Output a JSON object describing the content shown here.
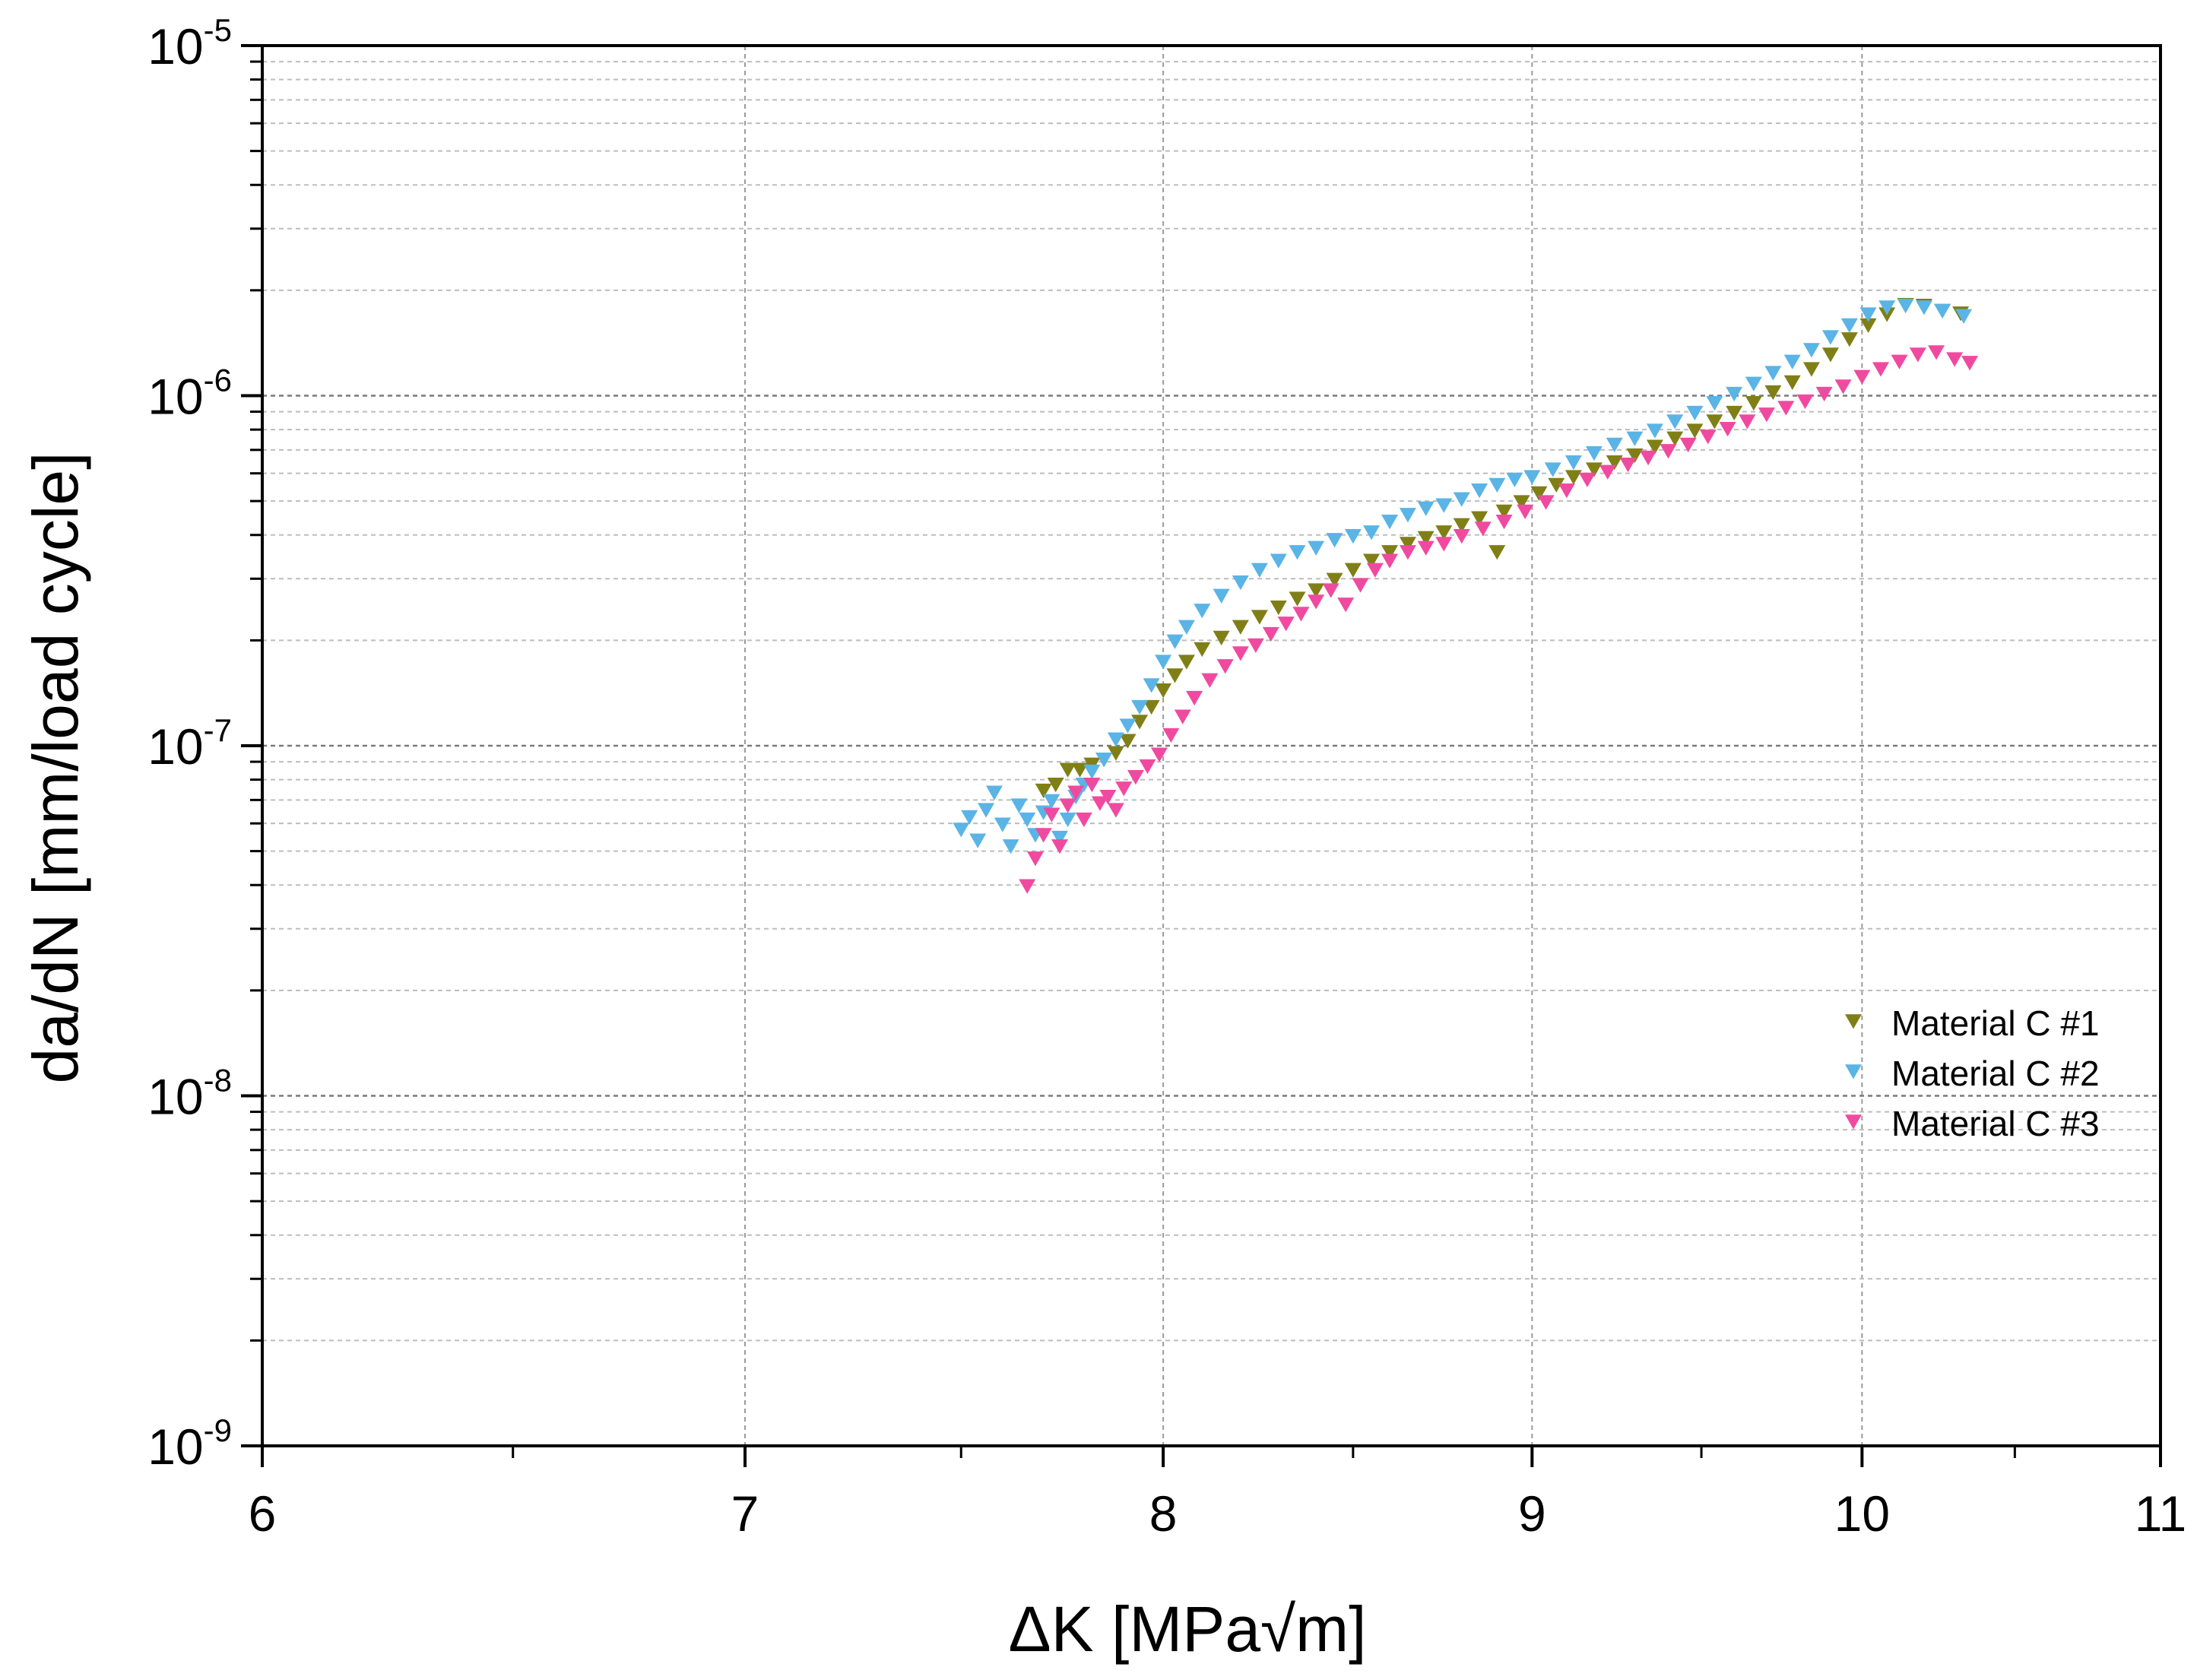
{
  "chart_data": {
    "type": "scatter",
    "title": "",
    "xlabel": "ΔK [MPa√m]",
    "ylabel": "da/dN [mm/load cycle]",
    "x_scale": "log",
    "y_scale": "log",
    "xlim": [
      6,
      11
    ],
    "ylim": [
      1e-09,
      1e-05
    ],
    "x_ticks": [
      {
        "value": 6,
        "label": "6"
      },
      {
        "value": 7,
        "label": "7"
      },
      {
        "value": 8,
        "label": "8"
      },
      {
        "value": 9,
        "label": "9"
      },
      {
        "value": 10,
        "label": "10"
      },
      {
        "value": 11,
        "label": "11"
      }
    ],
    "y_ticks": [
      {
        "value": 1e-09,
        "base": "10",
        "exp": "-9"
      },
      {
        "value": 1e-08,
        "base": "10",
        "exp": "-8"
      },
      {
        "value": 1e-07,
        "base": "10",
        "exp": "-7"
      },
      {
        "value": 1e-06,
        "base": "10",
        "exp": "-6"
      },
      {
        "value": 1e-05,
        "base": "10",
        "exp": "-5"
      }
    ],
    "grid": true,
    "legend_position": "right",
    "marker": "triangle-down",
    "series": [
      {
        "name": "Material C #1",
        "color": "#7f7f16",
        "points": [
          [
            7.7,
            7.5e-08
          ],
          [
            7.73,
            7.8e-08
          ],
          [
            7.76,
            8.6e-08
          ],
          [
            7.79,
            8.6e-08
          ],
          [
            7.82,
            8.9e-08
          ],
          [
            7.85,
            9.2e-08
          ],
          [
            7.88,
            9.6e-08
          ],
          [
            7.91,
            1.04e-07
          ],
          [
            7.94,
            1.18e-07
          ],
          [
            7.97,
            1.3e-07
          ],
          [
            8.0,
            1.45e-07
          ],
          [
            8.03,
            1.6e-07
          ],
          [
            8.06,
            1.75e-07
          ],
          [
            8.1,
            1.9e-07
          ],
          [
            8.15,
            2.05e-07
          ],
          [
            8.2,
            2.2e-07
          ],
          [
            8.25,
            2.35e-07
          ],
          [
            8.3,
            2.5e-07
          ],
          [
            8.35,
            2.65e-07
          ],
          [
            8.4,
            2.8e-07
          ],
          [
            8.45,
            3e-07
          ],
          [
            8.5,
            3.2e-07
          ],
          [
            8.55,
            3.4e-07
          ],
          [
            8.6,
            3.6e-07
          ],
          [
            8.65,
            3.8e-07
          ],
          [
            8.7,
            3.95e-07
          ],
          [
            8.75,
            4.1e-07
          ],
          [
            8.8,
            4.3e-07
          ],
          [
            8.85,
            4.5e-07
          ],
          [
            8.9,
            3.6e-07
          ],
          [
            8.92,
            4.7e-07
          ],
          [
            8.97,
            5e-07
          ],
          [
            9.02,
            5.3e-07
          ],
          [
            9.07,
            5.6e-07
          ],
          [
            9.12,
            5.9e-07
          ],
          [
            9.18,
            6.2e-07
          ],
          [
            9.24,
            6.5e-07
          ],
          [
            9.3,
            6.8e-07
          ],
          [
            9.36,
            7.2e-07
          ],
          [
            9.42,
            7.6e-07
          ],
          [
            9.48,
            8e-07
          ],
          [
            9.54,
            8.5e-07
          ],
          [
            9.6,
            9e-07
          ],
          [
            9.66,
            9.6e-07
          ],
          [
            9.72,
            1.03e-06
          ],
          [
            9.78,
            1.1e-06
          ],
          [
            9.84,
            1.2e-06
          ],
          [
            9.9,
            1.32e-06
          ],
          [
            9.96,
            1.46e-06
          ],
          [
            10.02,
            1.6e-06
          ],
          [
            10.08,
            1.72e-06
          ],
          [
            10.14,
            1.83e-06
          ],
          [
            10.2,
            1.82e-06
          ],
          [
            10.26,
            1.76e-06
          ],
          [
            10.32,
            1.73e-06
          ]
        ]
      },
      {
        "name": "Material C #2",
        "color": "#5ab4e6",
        "points": [
          [
            7.5,
            5.8e-08
          ],
          [
            7.52,
            6.3e-08
          ],
          [
            7.54,
            5.4e-08
          ],
          [
            7.56,
            6.6e-08
          ],
          [
            7.58,
            7.4e-08
          ],
          [
            7.6,
            6e-08
          ],
          [
            7.62,
            5.2e-08
          ],
          [
            7.64,
            6.8e-08
          ],
          [
            7.66,
            6.2e-08
          ],
          [
            7.68,
            5.6e-08
          ],
          [
            7.7,
            6.5e-08
          ],
          [
            7.72,
            7e-08
          ],
          [
            7.74,
            5.5e-08
          ],
          [
            7.76,
            6.2e-08
          ],
          [
            7.78,
            7.2e-08
          ],
          [
            7.8,
            7.8e-08
          ],
          [
            7.82,
            8.5e-08
          ],
          [
            7.85,
            9.2e-08
          ],
          [
            7.88,
            1.05e-07
          ],
          [
            7.91,
            1.15e-07
          ],
          [
            7.94,
            1.3e-07
          ],
          [
            7.97,
            1.5e-07
          ],
          [
            8.0,
            1.75e-07
          ],
          [
            8.03,
            2e-07
          ],
          [
            8.06,
            2.2e-07
          ],
          [
            8.1,
            2.45e-07
          ],
          [
            8.15,
            2.7e-07
          ],
          [
            8.2,
            2.95e-07
          ],
          [
            8.25,
            3.2e-07
          ],
          [
            8.3,
            3.4e-07
          ],
          [
            8.35,
            3.6e-07
          ],
          [
            8.4,
            3.7e-07
          ],
          [
            8.45,
            3.9e-07
          ],
          [
            8.5,
            4e-07
          ],
          [
            8.55,
            4.1e-07
          ],
          [
            8.6,
            4.4e-07
          ],
          [
            8.65,
            4.6e-07
          ],
          [
            8.7,
            4.8e-07
          ],
          [
            8.75,
            4.9e-07
          ],
          [
            8.8,
            5.1e-07
          ],
          [
            8.85,
            5.4e-07
          ],
          [
            8.9,
            5.6e-07
          ],
          [
            8.95,
            5.8e-07
          ],
          [
            9.0,
            5.9e-07
          ],
          [
            9.06,
            6.2e-07
          ],
          [
            9.12,
            6.5e-07
          ],
          [
            9.18,
            6.9e-07
          ],
          [
            9.24,
            7.3e-07
          ],
          [
            9.3,
            7.6e-07
          ],
          [
            9.36,
            8e-07
          ],
          [
            9.42,
            8.5e-07
          ],
          [
            9.48,
            9e-07
          ],
          [
            9.54,
            9.6e-07
          ],
          [
            9.6,
            1.02e-06
          ],
          [
            9.66,
            1.09e-06
          ],
          [
            9.72,
            1.17e-06
          ],
          [
            9.78,
            1.26e-06
          ],
          [
            9.84,
            1.36e-06
          ],
          [
            9.9,
            1.48e-06
          ],
          [
            9.96,
            1.6e-06
          ],
          [
            10.02,
            1.72e-06
          ],
          [
            10.08,
            1.8e-06
          ],
          [
            10.14,
            1.82e-06
          ],
          [
            10.2,
            1.8e-06
          ],
          [
            10.26,
            1.76e-06
          ],
          [
            10.33,
            1.7e-06
          ]
        ]
      },
      {
        "name": "Material C #3",
        "color": "#f04aa0",
        "points": [
          [
            7.66,
            4e-08
          ],
          [
            7.68,
            4.8e-08
          ],
          [
            7.7,
            5.6e-08
          ],
          [
            7.72,
            6.4e-08
          ],
          [
            7.74,
            5.2e-08
          ],
          [
            7.76,
            6.8e-08
          ],
          [
            7.78,
            7.4e-08
          ],
          [
            7.8,
            6.2e-08
          ],
          [
            7.82,
            7.8e-08
          ],
          [
            7.84,
            6.9e-08
          ],
          [
            7.86,
            7.2e-08
          ],
          [
            7.88,
            6.6e-08
          ],
          [
            7.9,
            7.6e-08
          ],
          [
            7.93,
            8.2e-08
          ],
          [
            7.96,
            8.8e-08
          ],
          [
            7.99,
            9.5e-08
          ],
          [
            8.02,
            1.08e-07
          ],
          [
            8.05,
            1.22e-07
          ],
          [
            8.08,
            1.38e-07
          ],
          [
            8.12,
            1.55e-07
          ],
          [
            8.16,
            1.7e-07
          ],
          [
            8.2,
            1.85e-07
          ],
          [
            8.24,
            1.95e-07
          ],
          [
            8.28,
            2.1e-07
          ],
          [
            8.32,
            2.25e-07
          ],
          [
            8.36,
            2.4e-07
          ],
          [
            8.4,
            2.6e-07
          ],
          [
            8.44,
            2.8e-07
          ],
          [
            8.48,
            2.55e-07
          ],
          [
            8.52,
            2.9e-07
          ],
          [
            8.56,
            3.2e-07
          ],
          [
            8.6,
            3.4e-07
          ],
          [
            8.65,
            3.6e-07
          ],
          [
            8.7,
            3.7e-07
          ],
          [
            8.75,
            3.8e-07
          ],
          [
            8.8,
            4e-07
          ],
          [
            8.86,
            4.2e-07
          ],
          [
            8.92,
            4.4e-07
          ],
          [
            8.98,
            4.7e-07
          ],
          [
            9.04,
            5e-07
          ],
          [
            9.1,
            5.4e-07
          ],
          [
            9.16,
            5.8e-07
          ],
          [
            9.22,
            6.1e-07
          ],
          [
            9.28,
            6.4e-07
          ],
          [
            9.34,
            6.7e-07
          ],
          [
            9.4,
            7e-07
          ],
          [
            9.46,
            7.3e-07
          ],
          [
            9.52,
            7.7e-07
          ],
          [
            9.58,
            8.1e-07
          ],
          [
            9.64,
            8.5e-07
          ],
          [
            9.7,
            8.9e-07
          ],
          [
            9.76,
            9.3e-07
          ],
          [
            9.82,
            9.7e-07
          ],
          [
            9.88,
            1.02e-06
          ],
          [
            9.94,
            1.07e-06
          ],
          [
            10.0,
            1.14e-06
          ],
          [
            10.06,
            1.2e-06
          ],
          [
            10.12,
            1.26e-06
          ],
          [
            10.18,
            1.32e-06
          ],
          [
            10.24,
            1.34e-06
          ],
          [
            10.3,
            1.28e-06
          ],
          [
            10.35,
            1.25e-06
          ]
        ]
      }
    ]
  }
}
